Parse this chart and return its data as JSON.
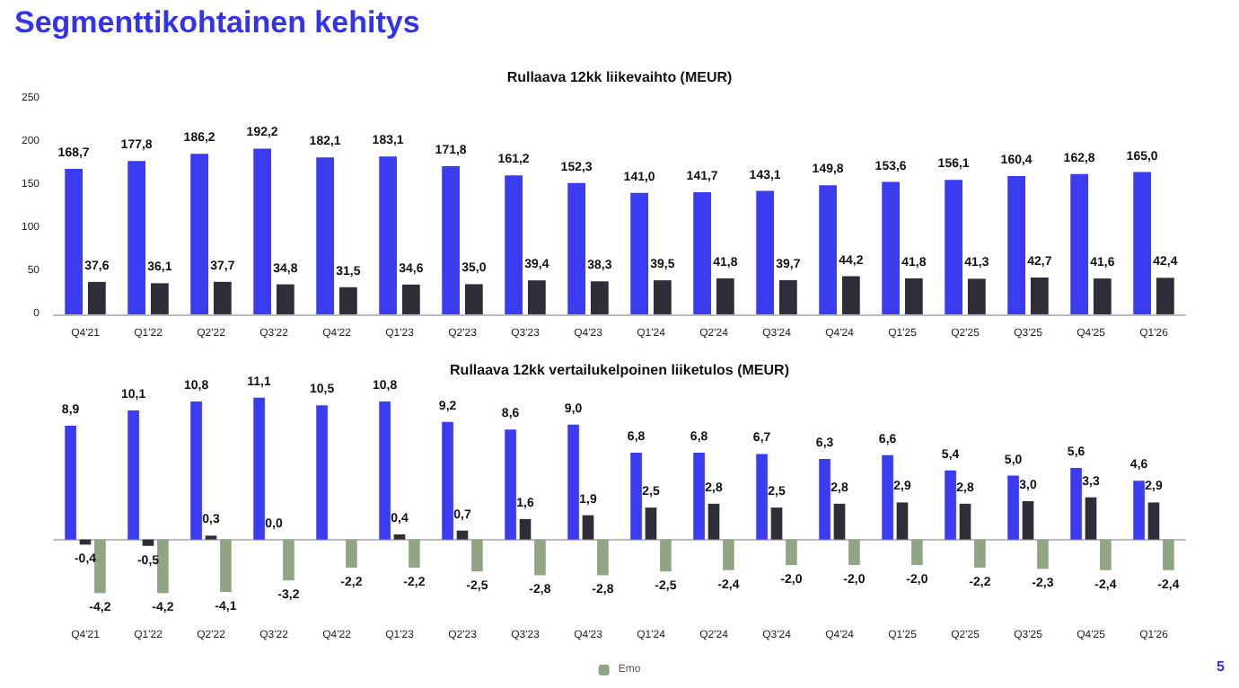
{
  "chart_data": [
    {
      "type": "bar",
      "title": "Rullaava 12kk liikevaihto (MEUR)",
      "annotations": [
        "Segmenttikohtainen kehitys"
      ],
      "categories": [
        "Q4'21",
        "Q1'22",
        "Q2'22",
        "Q3'22",
        "Q4'22",
        "Q1'23",
        "Q2'23",
        "Q3'23",
        "Q4'23",
        "Q1'24",
        "Q2'24",
        "Q3'24",
        "Q4'24",
        "Q1'25",
        "Q2'25",
        "Q3'25",
        "Q4'25",
        "Q1'26"
      ],
      "ylim": [
        0,
        250
      ],
      "yticks": [
        0,
        50,
        100,
        150,
        200,
        250
      ],
      "series": [
        {
          "color": "#3b3bf0",
          "values": [
            168.7,
            177.8,
            186.2,
            192.2,
            182.1,
            183.1,
            171.8,
            161.2,
            152.3,
            141.0,
            141.7,
            143.1,
            149.8,
            153.6,
            156.1,
            160.4,
            162.8,
            165.0
          ],
          "value_labels": [
            "168,7",
            "177,8",
            "186,2",
            "192,2",
            "182,1",
            "183,1",
            "171,8",
            "161,2",
            "152,3",
            "141,0",
            "141,7",
            "143,1",
            "149,8",
            "153,6",
            "156,1",
            "160,4",
            "162,8",
            "165,0"
          ]
        },
        {
          "color": "#2e2e38",
          "values": [
            37.6,
            36.1,
            37.7,
            34.8,
            31.5,
            34.6,
            35.0,
            39.4,
            38.3,
            39.5,
            41.8,
            39.7,
            44.2,
            41.8,
            41.3,
            42.7,
            41.6,
            42.4
          ],
          "value_labels": [
            "37,6",
            "36,1",
            "37,7",
            "34,8",
            "31,5",
            "34,6",
            "35,0",
            "39,4",
            "38,3",
            "39,5",
            "41,8",
            "39,7",
            "44,2",
            "41,8",
            "41,3",
            "42,7",
            "41,6",
            "42,4"
          ]
        }
      ]
    },
    {
      "type": "bar",
      "title": "Rullaava 12kk vertailukelpoinen liiketulos (MEUR)",
      "annotations": [
        "5"
      ],
      "legend": "bottom",
      "tick_labels": "x",
      "categories": [
        "Q4'21",
        "Q1'22",
        "Q2'22",
        "Q3'22",
        "Q4'22",
        "Q1'23",
        "Q2'23",
        "Q3'23",
        "Q4'23",
        "Q1'24",
        "Q2'24",
        "Q3'24",
        "Q4'24",
        "Q1'25",
        "Q2'25",
        "Q3'25",
        "Q4'25",
        "Q1'26"
      ],
      "series": [
        {
          "color": "#3b3bf0",
          "values": [
            8.9,
            10.1,
            10.8,
            11.1,
            10.5,
            10.8,
            9.2,
            8.6,
            9.0,
            6.8,
            6.8,
            6.7,
            6.3,
            6.6,
            5.4,
            5.0,
            5.6,
            4.6
          ],
          "value_labels": [
            "8,9",
            "10,1",
            "10,8",
            "11,1",
            "10,5",
            "10,8",
            "9,2",
            "8,6",
            "9,0",
            "6,8",
            "6,8",
            "6,7",
            "6,3",
            "6,6",
            "5,4",
            "5,0",
            "5,6",
            "4,6"
          ]
        },
        {
          "color": "#2e2e38",
          "values": [
            -0.4,
            -0.5,
            0.3,
            0.0,
            null,
            0.4,
            0.7,
            1.6,
            1.9,
            2.5,
            2.8,
            2.5,
            2.8,
            2.9,
            2.8,
            3.0,
            3.3,
            2.9
          ],
          "value_labels": [
            "-0,4",
            "-0,5",
            "0,3",
            "0,0",
            null,
            "0,4",
            "0,7",
            "1,6",
            "1,9",
            "2,5",
            "2,8",
            "2,5",
            "2,8",
            "2,9",
            "2,8",
            "3,0",
            "3,3",
            "2,9"
          ]
        },
        {
          "name": "Emo",
          "color": "#8fa584",
          "values": [
            -4.2,
            -4.2,
            -4.1,
            -3.2,
            -2.2,
            -2.2,
            -2.5,
            -2.8,
            -2.8,
            -2.5,
            -2.4,
            -2.0,
            -2.0,
            -2.0,
            -2.2,
            -2.3,
            -2.4,
            -2.4
          ],
          "value_labels": [
            "-4,2",
            "-4,2",
            "-4,1",
            "-3,2",
            "-2,2",
            "-2,2",
            "-2,5",
            "-2,8",
            "-2,8",
            "-2,5",
            "-2,4",
            "-2,0",
            "-2,0",
            "-2,0",
            "-2,2",
            "-2,3",
            "-2,4",
            "-2,4"
          ]
        }
      ]
    }
  ]
}
